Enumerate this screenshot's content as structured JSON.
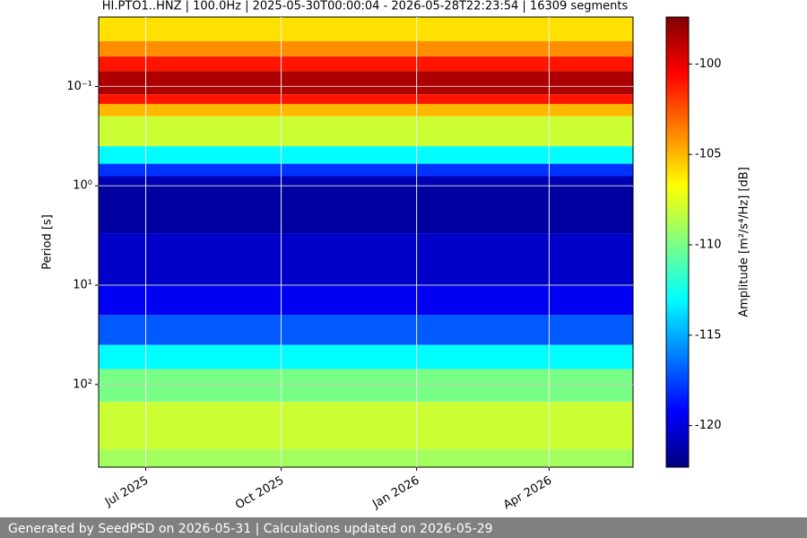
{
  "chart_data": {
    "type": "spectrogram",
    "title": "HI.PTO1..HNZ | 100.0Hz | 2025-05-30T00:00:04 - 2026-05-28T22:23:54 | 16309 segments",
    "ylabel": "Period [s]",
    "yscale": "log",
    "ylim": [
      680,
      0.02
    ],
    "yticks": [
      {
        "value": 0.1,
        "label": "10⁻¹"
      },
      {
        "value": 1,
        "label": "10⁰"
      },
      {
        "value": 10,
        "label": "10¹"
      },
      {
        "value": 100,
        "label": "10²"
      }
    ],
    "xlim": [
      "2025-05-30",
      "2026-05-28"
    ],
    "xticks": [
      {
        "value": "2025-07-01",
        "label": "Jul 2025"
      },
      {
        "value": "2025-10-01",
        "label": "Oct 2025"
      },
      {
        "value": "2026-01-01",
        "label": "Jan 2026"
      },
      {
        "value": "2026-04-01",
        "label": "Apr 2026"
      }
    ],
    "grid": true,
    "colormap": "jet",
    "period_edges": [
      0.02,
      0.035,
      0.05,
      0.07,
      0.12,
      0.15,
      0.2,
      0.4,
      0.6,
      0.8,
      1,
      3,
      10,
      20,
      40,
      70,
      150,
      450,
      680
    ],
    "values": [
      -106,
      -104,
      -101,
      -98.5,
      -101,
      -105,
      -108,
      -113,
      -118,
      -121,
      -121.5,
      -120.5,
      -119.5,
      -117,
      -113,
      -110,
      -108,
      -109
    ],
    "colorbar": {
      "label": "Amplitude [m²/s⁴/Hz] [dB]",
      "clim": [
        -122.3,
        -97.4
      ],
      "ticks": [
        -120,
        -115,
        -110,
        -105,
        -100
      ]
    },
    "footer": "Generated by SeedPSD on 2026-05-31 | Calculations updated on 2026-05-29"
  }
}
